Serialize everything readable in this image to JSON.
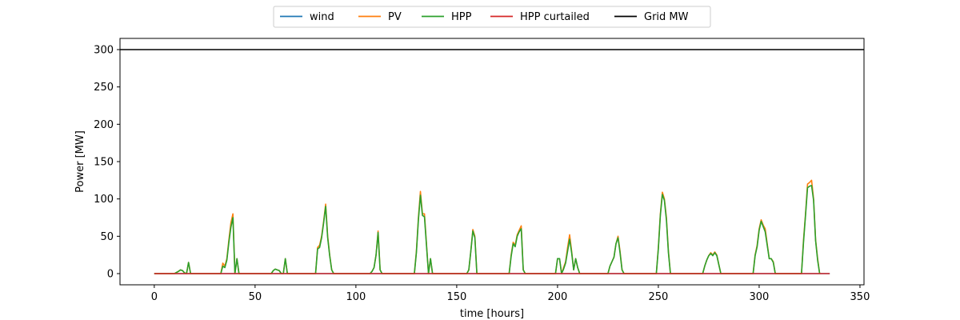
{
  "chart_data": {
    "type": "line",
    "title": "",
    "xlabel": "time [hours]",
    "ylabel": "Power [MW]",
    "xlim": [
      -17,
      352
    ],
    "ylim": [
      -15,
      315
    ],
    "xticks": [
      "0",
      "50",
      "100",
      "150",
      "200",
      "250",
      "300",
      "350"
    ],
    "yticks": [
      "0",
      "50",
      "100",
      "150",
      "200",
      "250",
      "300"
    ],
    "legend_position": "top-center",
    "grid": false,
    "series": [
      {
        "name": "wind",
        "color": "#1f77b4",
        "points": [
          [
            0,
            0
          ],
          [
            335,
            0
          ]
        ]
      },
      {
        "name": "PV",
        "color": "#ff7f0e",
        "points": [
          [
            0,
            0
          ],
          [
            10,
            0
          ],
          [
            12,
            3
          ],
          [
            13,
            5
          ],
          [
            14,
            4
          ],
          [
            15,
            1
          ],
          [
            16,
            0
          ],
          [
            17,
            15
          ],
          [
            18,
            0
          ],
          [
            33,
            0
          ],
          [
            34,
            14
          ],
          [
            35,
            10
          ],
          [
            36,
            20
          ],
          [
            37,
            45
          ],
          [
            38,
            68
          ],
          [
            39,
            80
          ],
          [
            40,
            0
          ],
          [
            41,
            20
          ],
          [
            42,
            0
          ],
          [
            58,
            0
          ],
          [
            59,
            4
          ],
          [
            60,
            6
          ],
          [
            61,
            5
          ],
          [
            62,
            4
          ],
          [
            63,
            0
          ],
          [
            64,
            0
          ],
          [
            65,
            20
          ],
          [
            66,
            0
          ],
          [
            80,
            0
          ],
          [
            81,
            35
          ],
          [
            82,
            38
          ],
          [
            83,
            50
          ],
          [
            84,
            70
          ],
          [
            85,
            93
          ],
          [
            86,
            50
          ],
          [
            87,
            25
          ],
          [
            88,
            5
          ],
          [
            89,
            0
          ],
          [
            107,
            0
          ],
          [
            108,
            3
          ],
          [
            109,
            8
          ],
          [
            110,
            25
          ],
          [
            111,
            57
          ],
          [
            112,
            5
          ],
          [
            113,
            0
          ],
          [
            129,
            0
          ],
          [
            130,
            30
          ],
          [
            131,
            75
          ],
          [
            132,
            110
          ],
          [
            133,
            80
          ],
          [
            134,
            80
          ],
          [
            135,
            40
          ],
          [
            136,
            0
          ],
          [
            137,
            20
          ],
          [
            138,
            0
          ],
          [
            155,
            0
          ],
          [
            156,
            5
          ],
          [
            157,
            30
          ],
          [
            158,
            59
          ],
          [
            159,
            50
          ],
          [
            160,
            0
          ],
          [
            176,
            0
          ],
          [
            177,
            25
          ],
          [
            178,
            42
          ],
          [
            179,
            38
          ],
          [
            180,
            52
          ],
          [
            181,
            58
          ],
          [
            182,
            64
          ],
          [
            183,
            5
          ],
          [
            184,
            0
          ],
          [
            199,
            0
          ],
          [
            200,
            20
          ],
          [
            201,
            20
          ],
          [
            202,
            0
          ],
          [
            203,
            8
          ],
          [
            204,
            16
          ],
          [
            205,
            35
          ],
          [
            206,
            52
          ],
          [
            207,
            30
          ],
          [
            208,
            5
          ],
          [
            209,
            20
          ],
          [
            210,
            8
          ],
          [
            211,
            0
          ],
          [
            225,
            0
          ],
          [
            226,
            10
          ],
          [
            228,
            22
          ],
          [
            229,
            40
          ],
          [
            230,
            50
          ],
          [
            231,
            30
          ],
          [
            232,
            5
          ],
          [
            233,
            0
          ],
          [
            249,
            0
          ],
          [
            250,
            35
          ],
          [
            251,
            80
          ],
          [
            252,
            109
          ],
          [
            253,
            100
          ],
          [
            254,
            75
          ],
          [
            255,
            30
          ],
          [
            256,
            0
          ],
          [
            272,
            0
          ],
          [
            273,
            10
          ],
          [
            274,
            18
          ],
          [
            275,
            24
          ],
          [
            276,
            28
          ],
          [
            277,
            25
          ],
          [
            278,
            29
          ],
          [
            279,
            25
          ],
          [
            280,
            12
          ],
          [
            281,
            0
          ],
          [
            297,
            0
          ],
          [
            298,
            25
          ],
          [
            299,
            38
          ],
          [
            300,
            60
          ],
          [
            301,
            72
          ],
          [
            302,
            65
          ],
          [
            303,
            60
          ],
          [
            304,
            40
          ],
          [
            305,
            20
          ],
          [
            306,
            20
          ],
          [
            307,
            16
          ],
          [
            308,
            0
          ],
          [
            321,
            0
          ],
          [
            322,
            45
          ],
          [
            323,
            80
          ],
          [
            324,
            120
          ],
          [
            325,
            122
          ],
          [
            326,
            125
          ],
          [
            327,
            100
          ],
          [
            328,
            45
          ],
          [
            329,
            20
          ],
          [
            330,
            0
          ]
        ]
      },
      {
        "name": "HPP",
        "color": "#2ca02c",
        "points": [
          [
            0,
            0
          ],
          [
            10,
            0
          ],
          [
            12,
            3
          ],
          [
            13,
            5
          ],
          [
            14,
            4
          ],
          [
            15,
            1
          ],
          [
            16,
            0
          ],
          [
            17,
            15
          ],
          [
            18,
            0
          ],
          [
            33,
            0
          ],
          [
            34,
            10
          ],
          [
            35,
            8
          ],
          [
            36,
            18
          ],
          [
            37,
            42
          ],
          [
            38,
            62
          ],
          [
            39,
            75
          ],
          [
            40,
            0
          ],
          [
            41,
            20
          ],
          [
            42,
            0
          ],
          [
            58,
            0
          ],
          [
            59,
            4
          ],
          [
            60,
            6
          ],
          [
            61,
            5
          ],
          [
            62,
            4
          ],
          [
            63,
            0
          ],
          [
            64,
            0
          ],
          [
            65,
            20
          ],
          [
            66,
            0
          ],
          [
            80,
            0
          ],
          [
            81,
            33
          ],
          [
            82,
            35
          ],
          [
            83,
            48
          ],
          [
            84,
            68
          ],
          [
            85,
            90
          ],
          [
            86,
            48
          ],
          [
            87,
            24
          ],
          [
            88,
            5
          ],
          [
            89,
            0
          ],
          [
            107,
            0
          ],
          [
            108,
            3
          ],
          [
            109,
            8
          ],
          [
            110,
            25
          ],
          [
            111,
            55
          ],
          [
            112,
            5
          ],
          [
            113,
            0
          ],
          [
            129,
            0
          ],
          [
            130,
            28
          ],
          [
            131,
            72
          ],
          [
            132,
            105
          ],
          [
            133,
            78
          ],
          [
            134,
            76
          ],
          [
            135,
            38
          ],
          [
            136,
            0
          ],
          [
            137,
            20
          ],
          [
            138,
            0
          ],
          [
            155,
            0
          ],
          [
            156,
            5
          ],
          [
            157,
            30
          ],
          [
            158,
            57
          ],
          [
            159,
            48
          ],
          [
            160,
            0
          ],
          [
            176,
            0
          ],
          [
            177,
            23
          ],
          [
            178,
            40
          ],
          [
            179,
            36
          ],
          [
            180,
            50
          ],
          [
            181,
            56
          ],
          [
            182,
            60
          ],
          [
            183,
            5
          ],
          [
            184,
            0
          ],
          [
            199,
            0
          ],
          [
            200,
            20
          ],
          [
            201,
            20
          ],
          [
            202,
            0
          ],
          [
            203,
            6
          ],
          [
            204,
            14
          ],
          [
            205,
            30
          ],
          [
            206,
            46
          ],
          [
            207,
            28
          ],
          [
            208,
            5
          ],
          [
            209,
            20
          ],
          [
            210,
            8
          ],
          [
            211,
            0
          ],
          [
            225,
            0
          ],
          [
            226,
            10
          ],
          [
            228,
            22
          ],
          [
            229,
            40
          ],
          [
            230,
            48
          ],
          [
            231,
            28
          ],
          [
            232,
            5
          ],
          [
            233,
            0
          ],
          [
            249,
            0
          ],
          [
            250,
            33
          ],
          [
            251,
            78
          ],
          [
            252,
            106
          ],
          [
            253,
            98
          ],
          [
            254,
            72
          ],
          [
            255,
            28
          ],
          [
            256,
            0
          ],
          [
            272,
            0
          ],
          [
            273,
            10
          ],
          [
            274,
            18
          ],
          [
            275,
            24
          ],
          [
            276,
            27
          ],
          [
            277,
            24
          ],
          [
            278,
            28
          ],
          [
            279,
            24
          ],
          [
            280,
            12
          ],
          [
            281,
            0
          ],
          [
            297,
            0
          ],
          [
            298,
            24
          ],
          [
            299,
            36
          ],
          [
            300,
            58
          ],
          [
            301,
            70
          ],
          [
            302,
            63
          ],
          [
            303,
            56
          ],
          [
            304,
            38
          ],
          [
            305,
            20
          ],
          [
            306,
            20
          ],
          [
            307,
            15
          ],
          [
            308,
            0
          ],
          [
            321,
            0
          ],
          [
            322,
            42
          ],
          [
            323,
            78
          ],
          [
            324,
            115
          ],
          [
            325,
            117
          ],
          [
            326,
            118
          ],
          [
            327,
            98
          ],
          [
            328,
            44
          ],
          [
            329,
            18
          ],
          [
            330,
            0
          ]
        ]
      },
      {
        "name": "HPP curtailed",
        "color": "#d62728",
        "points": [
          [
            0,
            0
          ],
          [
            335,
            0
          ]
        ]
      },
      {
        "name": "Grid MW",
        "color": "#000000",
        "points": [
          [
            -17,
            300
          ],
          [
            352,
            300
          ]
        ]
      }
    ]
  }
}
